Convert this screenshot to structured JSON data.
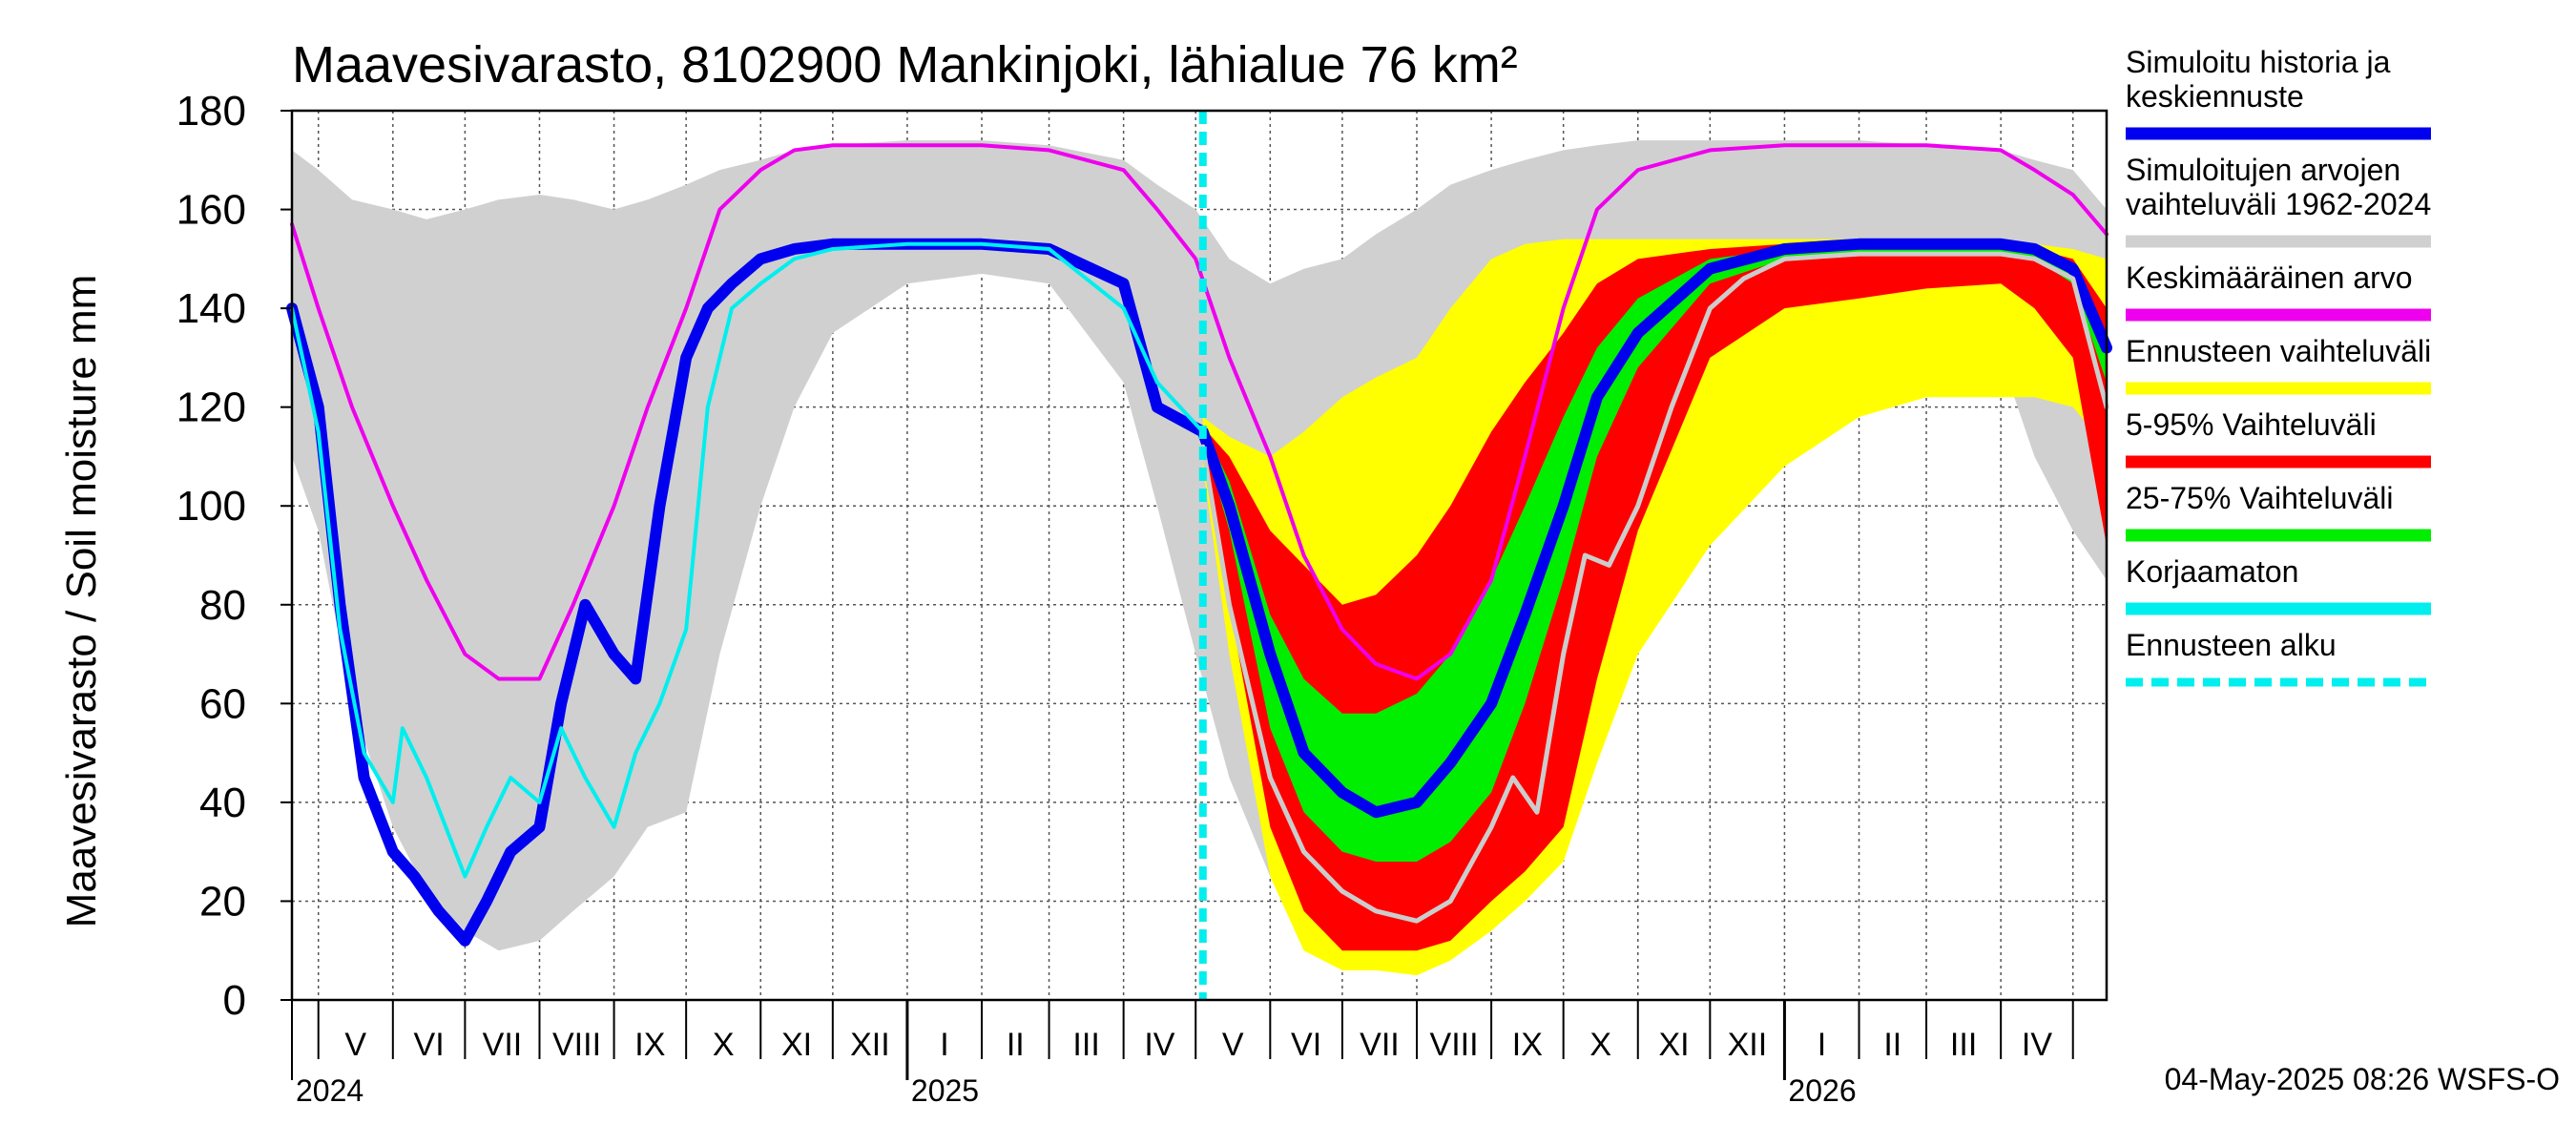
{
  "chart_data": {
    "type": "area",
    "title": "Maavesivarasto, 8102900 Mankinjoki, lähialue 76 km²",
    "ylabel": "Maavesivarasto / Soil moisture   mm",
    "ylim": [
      0,
      180
    ],
    "yticks": [
      0,
      20,
      40,
      60,
      80,
      100,
      120,
      140,
      160,
      180
    ],
    "x_range": [
      "2024-04-20",
      "2026-05-15"
    ],
    "grid": true,
    "legend_position": "right",
    "forecast_start": "2025-05-04",
    "months": [
      {
        "label": "V",
        "start": "2024-05-01"
      },
      {
        "label": "VI",
        "start": "2024-06-01"
      },
      {
        "label": "VII",
        "start": "2024-07-01"
      },
      {
        "label": "VIII",
        "start": "2024-08-01"
      },
      {
        "label": "IX",
        "start": "2024-09-01"
      },
      {
        "label": "X",
        "start": "2024-10-01"
      },
      {
        "label": "XI",
        "start": "2024-11-01"
      },
      {
        "label": "XII",
        "start": "2024-12-01"
      },
      {
        "label": "I",
        "start": "2025-01-01"
      },
      {
        "label": "II",
        "start": "2025-02-01"
      },
      {
        "label": "III",
        "start": "2025-03-01"
      },
      {
        "label": "IV",
        "start": "2025-04-01"
      },
      {
        "label": "V",
        "start": "2025-05-01"
      },
      {
        "label": "VI",
        "start": "2025-06-01"
      },
      {
        "label": "VII",
        "start": "2025-07-01"
      },
      {
        "label": "VIII",
        "start": "2025-08-01"
      },
      {
        "label": "IX",
        "start": "2025-09-01"
      },
      {
        "label": "X",
        "start": "2025-10-01"
      },
      {
        "label": "XI",
        "start": "2025-11-01"
      },
      {
        "label": "XII",
        "start": "2025-12-01"
      },
      {
        "label": "I",
        "start": "2026-01-01"
      },
      {
        "label": "II",
        "start": "2026-02-01"
      },
      {
        "label": "III",
        "start": "2026-03-01"
      },
      {
        "label": "IV",
        "start": "2026-04-01"
      },
      {
        "label": "",
        "start": "2026-05-01"
      }
    ],
    "years": [
      {
        "label": "2024",
        "date": "2024-04-20"
      },
      {
        "label": "2025",
        "date": "2025-01-01"
      },
      {
        "label": "2026",
        "date": "2026-01-01"
      }
    ],
    "series": [
      {
        "name": "Simuloitujen arvojen vaihteluväli 1962-2024",
        "kind": "band",
        "color": "#d0d0d0",
        "x": [
          "2024-04-20",
          "2024-05-01",
          "2024-05-15",
          "2024-06-01",
          "2024-06-15",
          "2024-07-01",
          "2024-07-15",
          "2024-08-01",
          "2024-08-15",
          "2024-09-01",
          "2024-09-15",
          "2024-10-01",
          "2024-10-15",
          "2024-11-01",
          "2024-11-15",
          "2024-12-01",
          "2025-01-01",
          "2025-02-01",
          "2025-03-01",
          "2025-04-01",
          "2025-04-15",
          "2025-05-01",
          "2025-05-15",
          "2025-06-01",
          "2025-06-15",
          "2025-07-01",
          "2025-07-15",
          "2025-08-01",
          "2025-08-15",
          "2025-09-01",
          "2025-09-15",
          "2025-10-01",
          "2025-10-15",
          "2025-11-01",
          "2025-12-01",
          "2026-01-01",
          "2026-02-01",
          "2026-03-01",
          "2026-04-01",
          "2026-04-15",
          "2026-05-01",
          "2026-05-15"
        ],
        "low": [
          110,
          95,
          60,
          35,
          22,
          14,
          10,
          12,
          18,
          25,
          35,
          38,
          70,
          100,
          120,
          135,
          145,
          147,
          145,
          125,
          100,
          70,
          45,
          25,
          15,
          10,
          8,
          10,
          14,
          22,
          32,
          60,
          90,
          115,
          132,
          140,
          143,
          143,
          130,
          110,
          95,
          85
        ],
        "high": [
          172,
          168,
          162,
          160,
          158,
          160,
          162,
          163,
          162,
          160,
          162,
          165,
          168,
          170,
          172,
          173,
          174,
          174,
          173,
          170,
          165,
          160,
          150,
          145,
          148,
          150,
          155,
          160,
          165,
          168,
          170,
          172,
          173,
          174,
          174,
          174,
          174,
          173,
          172,
          170,
          168,
          160
        ]
      },
      {
        "name": "Ennusteen vaihteluväli",
        "kind": "band",
        "color": "#ffff00",
        "x": [
          "2025-05-04",
          "2025-05-15",
          "2025-06-01",
          "2025-06-15",
          "2025-07-01",
          "2025-07-15",
          "2025-08-01",
          "2025-08-15",
          "2025-09-01",
          "2025-09-15",
          "2025-10-01",
          "2025-10-15",
          "2025-11-01",
          "2025-12-01",
          "2026-01-01",
          "2026-02-01",
          "2026-03-01",
          "2026-04-01",
          "2026-04-15",
          "2026-05-01",
          "2026-05-15"
        ],
        "low": [
          108,
          70,
          25,
          10,
          6,
          6,
          5,
          8,
          14,
          20,
          28,
          48,
          70,
          92,
          108,
          118,
          122,
          122,
          122,
          120,
          112
        ],
        "high": [
          118,
          114,
          110,
          115,
          122,
          126,
          130,
          140,
          150,
          153,
          154,
          154,
          154,
          154,
          154,
          154,
          154,
          154,
          153,
          152,
          150
        ]
      },
      {
        "name": "5-95% Vaihteluväli",
        "kind": "band",
        "color": "#ff0000",
        "x": [
          "2025-05-04",
          "2025-05-15",
          "2025-06-01",
          "2025-06-15",
          "2025-07-01",
          "2025-07-15",
          "2025-08-01",
          "2025-08-15",
          "2025-09-01",
          "2025-09-15",
          "2025-10-01",
          "2025-10-15",
          "2025-11-01",
          "2025-12-01",
          "2026-01-01",
          "2026-02-01",
          "2026-03-01",
          "2026-04-01",
          "2026-04-15",
          "2026-05-01",
          "2026-05-15"
        ],
        "low": [
          112,
          80,
          35,
          18,
          10,
          10,
          10,
          12,
          20,
          26,
          35,
          65,
          95,
          130,
          140,
          142,
          144,
          145,
          140,
          130,
          92
        ],
        "high": [
          116,
          110,
          95,
          88,
          80,
          82,
          90,
          100,
          115,
          125,
          135,
          145,
          150,
          152,
          153,
          153,
          153,
          153,
          152,
          150,
          140
        ]
      },
      {
        "name": "25-75% Vaihteluväli",
        "kind": "band",
        "color": "#00ee00",
        "x": [
          "2025-05-04",
          "2025-05-15",
          "2025-06-01",
          "2025-06-15",
          "2025-07-01",
          "2025-07-15",
          "2025-08-01",
          "2025-08-15",
          "2025-09-01",
          "2025-09-15",
          "2025-10-01",
          "2025-10-15",
          "2025-11-01",
          "2025-12-01",
          "2026-01-01",
          "2026-02-01",
          "2026-03-01",
          "2026-04-01",
          "2026-04-15",
          "2026-05-01",
          "2026-05-15"
        ],
        "low": [
          114,
          95,
          55,
          38,
          30,
          28,
          28,
          32,
          42,
          60,
          85,
          110,
          128,
          145,
          150,
          151,
          151,
          151,
          150,
          145,
          125
        ],
        "high": [
          116,
          105,
          78,
          65,
          58,
          58,
          62,
          70,
          85,
          100,
          118,
          132,
          142,
          150,
          152,
          152,
          152,
          152,
          151,
          148,
          135
        ]
      },
      {
        "name": "Simuloitu historia ja keskiennuste",
        "kind": "line",
        "color": "#0000ee",
        "x": [
          "2024-04-20",
          "2024-05-01",
          "2024-05-10",
          "2024-05-20",
          "2024-06-01",
          "2024-06-10",
          "2024-06-20",
          "2024-07-01",
          "2024-07-10",
          "2024-07-20",
          "2024-08-01",
          "2024-08-10",
          "2024-08-20",
          "2024-09-01",
          "2024-09-10",
          "2024-09-20",
          "2024-10-01",
          "2024-10-10",
          "2024-10-20",
          "2024-11-01",
          "2024-11-15",
          "2024-12-01",
          "2025-01-01",
          "2025-02-01",
          "2025-03-01",
          "2025-04-01",
          "2025-04-15",
          "2025-05-04",
          "2025-05-15",
          "2025-06-01",
          "2025-06-15",
          "2025-07-01",
          "2025-07-15",
          "2025-08-01",
          "2025-08-15",
          "2025-09-01",
          "2025-09-15",
          "2025-10-01",
          "2025-10-15",
          "2025-11-01",
          "2025-12-01",
          "2026-01-01",
          "2026-02-01",
          "2026-03-01",
          "2026-04-01",
          "2026-04-15",
          "2026-05-01",
          "2026-05-15"
        ],
        "y": [
          140,
          120,
          80,
          45,
          30,
          25,
          18,
          12,
          20,
          30,
          35,
          60,
          80,
          70,
          65,
          100,
          130,
          140,
          145,
          150,
          152,
          153,
          153,
          153,
          152,
          145,
          120,
          115,
          100,
          70,
          50,
          42,
          38,
          40,
          48,
          60,
          78,
          100,
          122,
          135,
          148,
          152,
          153,
          153,
          153,
          152,
          148,
          132
        ]
      },
      {
        "name": "Korjaamaton",
        "kind": "line",
        "color": "#00eeee",
        "x": [
          "2024-04-20",
          "2024-05-01",
          "2024-05-10",
          "2024-05-20",
          "2024-06-01",
          "2024-06-05",
          "2024-06-15",
          "2024-07-01",
          "2024-07-10",
          "2024-07-20",
          "2024-08-01",
          "2024-08-10",
          "2024-08-20",
          "2024-09-01",
          "2024-09-10",
          "2024-09-20",
          "2024-10-01",
          "2024-10-10",
          "2024-10-20",
          "2024-11-01",
          "2024-11-15",
          "2024-12-01",
          "2025-01-01",
          "2025-02-01",
          "2025-03-01",
          "2025-04-01",
          "2025-04-15",
          "2025-05-04"
        ],
        "y": [
          140,
          115,
          75,
          50,
          40,
          55,
          45,
          25,
          35,
          45,
          40,
          55,
          45,
          35,
          50,
          60,
          75,
          120,
          140,
          145,
          150,
          152,
          153,
          153,
          152,
          140,
          125,
          115
        ]
      },
      {
        "name": "Keskimääräinen arvo",
        "kind": "line",
        "color": "#ee00ee",
        "x": [
          "2024-04-20",
          "2024-05-01",
          "2024-05-15",
          "2024-06-01",
          "2024-06-15",
          "2024-07-01",
          "2024-07-15",
          "2024-08-01",
          "2024-08-15",
          "2024-09-01",
          "2024-09-15",
          "2024-10-01",
          "2024-10-15",
          "2024-11-01",
          "2024-11-15",
          "2024-12-01",
          "2025-01-01",
          "2025-02-01",
          "2025-03-01",
          "2025-04-01",
          "2025-04-15",
          "2025-05-01",
          "2025-05-15",
          "2025-06-01",
          "2025-06-15",
          "2025-07-01",
          "2025-07-15",
          "2025-08-01",
          "2025-08-15",
          "2025-09-01",
          "2025-09-15",
          "2025-10-01",
          "2025-10-15",
          "2025-11-01",
          "2025-12-01",
          "2026-01-01",
          "2026-02-01",
          "2026-03-01",
          "2026-04-01",
          "2026-04-15",
          "2026-05-01",
          "2026-05-15"
        ],
        "y": [
          157,
          140,
          120,
          100,
          85,
          70,
          65,
          65,
          80,
          100,
          120,
          140,
          160,
          168,
          172,
          173,
          173,
          173,
          172,
          168,
          160,
          150,
          130,
          110,
          90,
          75,
          68,
          65,
          70,
          85,
          110,
          140,
          160,
          168,
          172,
          173,
          173,
          173,
          172,
          168,
          163,
          155
        ]
      },
      {
        "name": "",
        "kind": "line",
        "color": "#cccccc",
        "x": [
          "2025-05-04",
          "2025-05-15",
          "2025-06-01",
          "2025-06-15",
          "2025-07-01",
          "2025-07-15",
          "2025-08-01",
          "2025-08-15",
          "2025-09-01",
          "2025-09-10",
          "2025-09-20",
          "2025-10-01",
          "2025-10-10",
          "2025-10-20",
          "2025-11-01",
          "2025-11-15",
          "2025-12-01",
          "2025-12-15",
          "2026-01-01",
          "2026-02-01",
          "2026-03-01",
          "2026-04-01",
          "2026-04-15",
          "2026-05-01",
          "2026-05-15"
        ],
        "y": [
          112,
          80,
          45,
          30,
          22,
          18,
          16,
          20,
          35,
          45,
          38,
          70,
          90,
          88,
          100,
          120,
          140,
          146,
          150,
          151,
          151,
          151,
          150,
          146,
          120
        ]
      }
    ]
  },
  "legend": [
    {
      "lines": [
        "Simuloitu historia ja",
        "keskiennuste"
      ],
      "color": "#0000ee",
      "style": "solid"
    },
    {
      "lines": [
        "Simuloitujen arvojen",
        "vaihteluväli 1962-2024"
      ],
      "color": "#d0d0d0",
      "style": "solid"
    },
    {
      "lines": [
        "Keskimääräinen arvo"
      ],
      "color": "#ee00ee",
      "style": "solid"
    },
    {
      "lines": [
        "Ennusteen vaihteluväli"
      ],
      "color": "#ffff00",
      "style": "solid"
    },
    {
      "lines": [
        "5-95% Vaihteluväli"
      ],
      "color": "#ff0000",
      "style": "solid"
    },
    {
      "lines": [
        "25-75% Vaihteluväli"
      ],
      "color": "#00ee00",
      "style": "solid"
    },
    {
      "lines": [
        "Korjaamaton"
      ],
      "color": "#00eeee",
      "style": "solid"
    },
    {
      "lines": [
        "Ennusteen alku"
      ],
      "color": "#00eeee",
      "style": "dashed"
    }
  ],
  "footer": "04-May-2025 08:26 WSFS-O"
}
